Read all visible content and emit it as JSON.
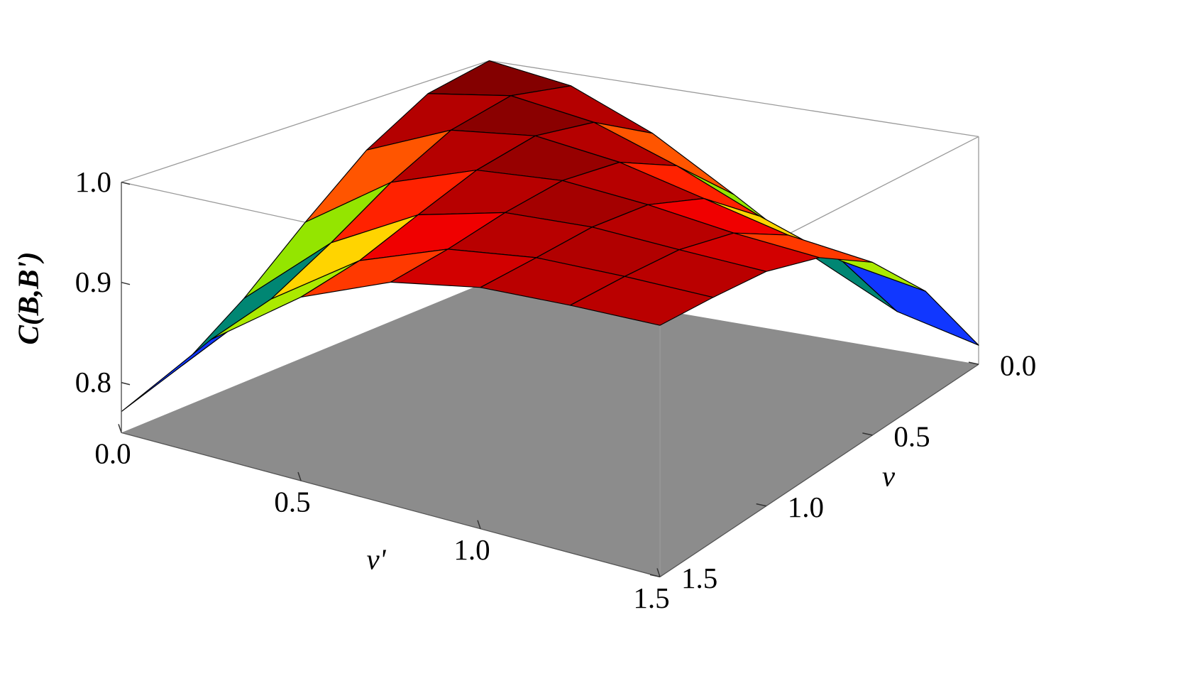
{
  "chart_data": {
    "type": "surface",
    "xlabel": "ν'",
    "ylabel": "ν",
    "zlabel": "C(B,B')",
    "x": [
      0,
      0.25,
      0.5,
      0.75,
      1,
      1.25,
      1.5
    ],
    "y": [
      0,
      0.25,
      0.5,
      0.75,
      1,
      1.25,
      1.5
    ],
    "z": [
      [
        1,
        0.986,
        0.947,
        0.893,
        0.837,
        0.793,
        0.771
      ],
      [
        0.986,
        0.999,
        0.985,
        0.953,
        0.914,
        0.881,
        0.865
      ],
      [
        0.947,
        0.985,
        0.995,
        0.983,
        0.961,
        0.939,
        0.927
      ],
      [
        0.893,
        0.953,
        0.983,
        0.989,
        0.981,
        0.969,
        0.961
      ],
      [
        0.837,
        0.914,
        0.961,
        0.981,
        0.984,
        0.979,
        0.975
      ],
      [
        0.793,
        0.881,
        0.939,
        0.969,
        0.979,
        0.979,
        0.977
      ],
      [
        0.771,
        0.865,
        0.927,
        0.961,
        0.975,
        0.977,
        0.977
      ]
    ],
    "xlim": [
      0,
      1.5
    ],
    "ylim": [
      0,
      1.5
    ],
    "zlim": [
      0.75,
      1.0
    ],
    "xticks": [
      {
        "value": 0,
        "label": "0.0"
      },
      {
        "value": 0.5,
        "label": "0.5"
      },
      {
        "value": 1,
        "label": "1.0"
      },
      {
        "value": 1.5,
        "label": "1.5"
      }
    ],
    "yticks": [
      {
        "value": 0,
        "label": "0.0"
      },
      {
        "value": 0.5,
        "label": "0.5"
      },
      {
        "value": 1,
        "label": "1.0"
      },
      {
        "value": 1.5,
        "label": "1.5"
      }
    ],
    "zticks": [
      0.8,
      0.9,
      {
        "value": 1.0,
        "label": "1.0"
      }
    ],
    "colormap": [
      "#1a0033",
      "#7a00ff",
      "#0040ff",
      "#00c000",
      "#ffff00",
      "#ff0000",
      "#6a0000"
    ],
    "mesh_color": "#000000",
    "floor_color": "#8c8c8c",
    "box_color": "#9a9a9a"
  }
}
